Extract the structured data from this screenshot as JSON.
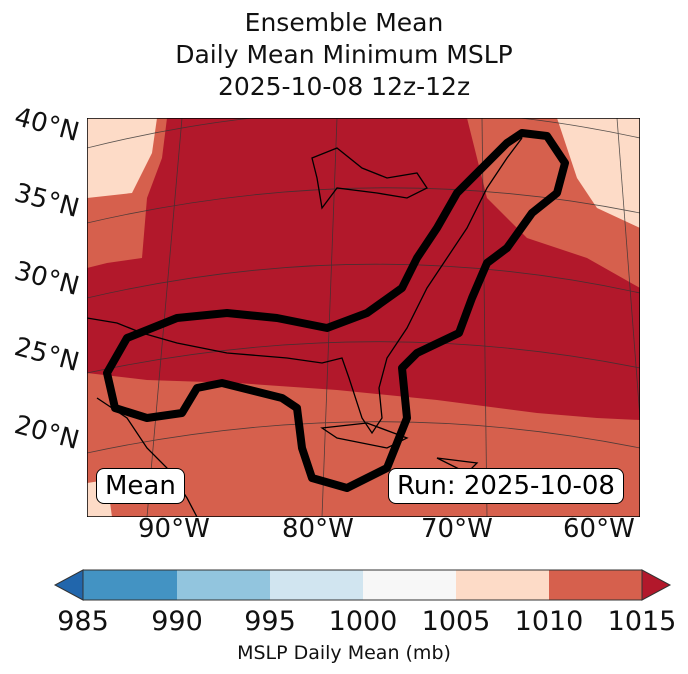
{
  "title": {
    "line1": "Ensemble Mean",
    "line2": "Daily Mean Minimum MSLP",
    "line3": "2025-10-08 12z-12z"
  },
  "lat_labels": [
    "40°N",
    "35°N",
    "30°N",
    "25°N",
    "20°N"
  ],
  "lon_labels": [
    "90°W",
    "80°W",
    "70°W",
    "60°W"
  ],
  "labels": {
    "left": "Mean",
    "right": "Run: 2025-10-08"
  },
  "colorbar": {
    "ticks": [
      "985",
      "990",
      "995",
      "1000",
      "1005",
      "1010",
      "1015"
    ],
    "label": "MSLP Daily Mean (mb)",
    "colors": [
      "#2166ac",
      "#4393c3",
      "#92c5de",
      "#d1e5f0",
      "#f7f7f7",
      "#fddbc7",
      "#d6604d",
      "#b2182b"
    ]
  }
}
